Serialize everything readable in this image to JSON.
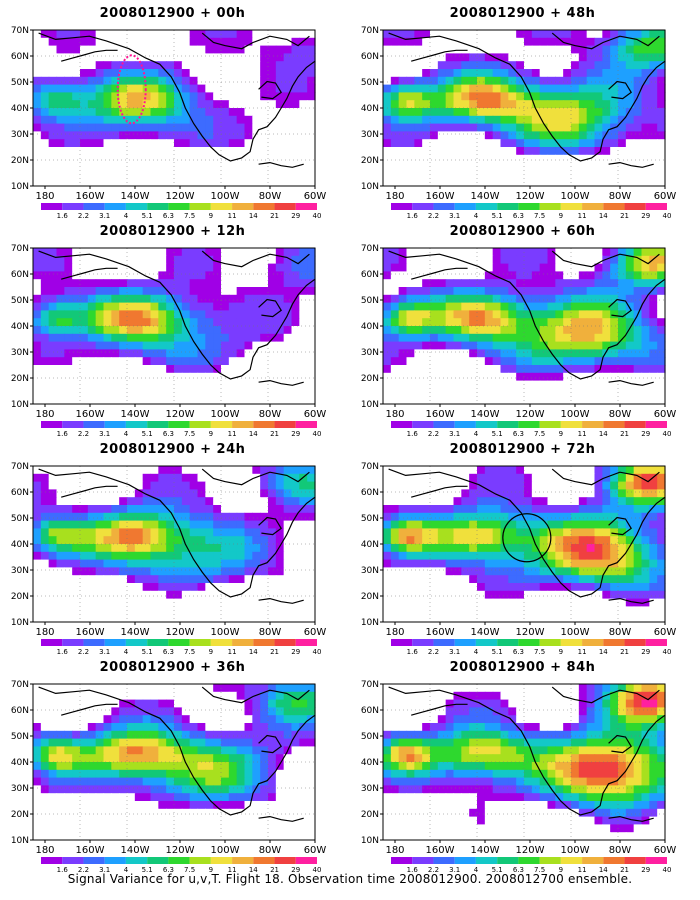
{
  "panels": [
    {
      "title": "2008012900 + 00h",
      "intensity": 0.35
    },
    {
      "title": "2008012900 + 12h",
      "intensity": 0.5
    },
    {
      "title": "2008012900 + 24h",
      "intensity": 0.65
    },
    {
      "title": "2008012900 + 36h",
      "intensity": 0.75
    },
    {
      "title": "2008012900 + 48h",
      "intensity": 0.8
    },
    {
      "title": "2008012900 + 60h",
      "intensity": 0.85
    },
    {
      "title": "2008012900 + 72h",
      "intensity": 0.9
    },
    {
      "title": "2008012900 + 84h",
      "intensity": 0.95
    }
  ],
  "axes": {
    "y_ticks": [
      "70N",
      "60N",
      "50N",
      "40N",
      "30N",
      "20N",
      "10N"
    ],
    "x_ticks": [
      "180",
      "160W",
      "140W",
      "120W",
      "100W",
      "80W",
      "60W"
    ]
  },
  "colorbar": {
    "labels": [
      "1.6",
      "2.2",
      "3.1",
      "4",
      "5.1",
      "6.3",
      "7.5",
      "9",
      "11",
      "14",
      "21",
      "29",
      "40"
    ],
    "colors": [
      "#ffffff",
      "#a000e6",
      "#7a3cff",
      "#3d6bff",
      "#1ea0ff",
      "#13c8c8",
      "#12c878",
      "#2ed82e",
      "#a8e01e",
      "#f0e03c",
      "#f0b03c",
      "#f07830",
      "#f04040",
      "#ff20a0"
    ]
  },
  "caption": "Signal Variance for u,v,T. Flight 18. Observation time 2008012900. 2008012700 ensemble."
}
